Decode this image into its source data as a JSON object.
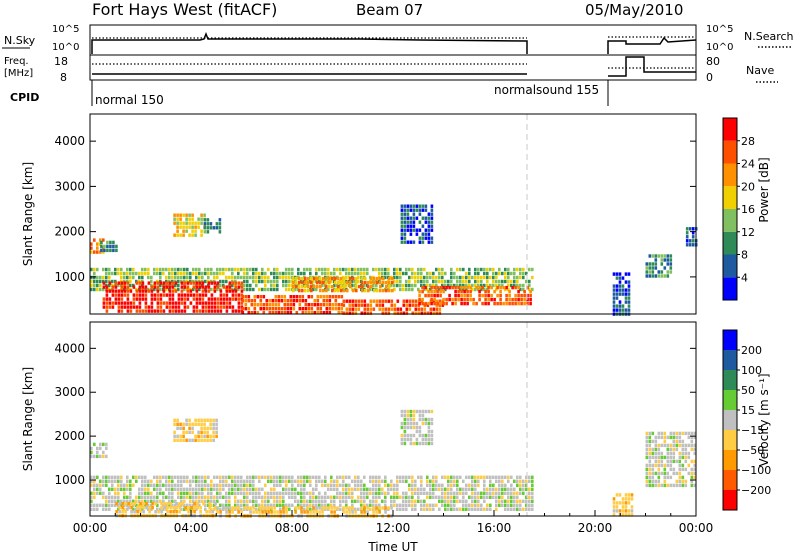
{
  "header": {
    "title": "Fort Hays West (fitACF)",
    "beam": "Beam 07",
    "date": "05/May/2010"
  },
  "status_panel": {
    "nsky_label": "N.Sky",
    "nsky_ticks": [
      "10^5",
      "10^0"
    ],
    "nsearch_label": "N.Search",
    "nsearch_ticks": [
      "10^5",
      "10^0"
    ],
    "freq_label": "Freq.",
    "freq_unit": "[MHz]",
    "freq_ticks": [
      "18",
      "8"
    ],
    "nave_label": "Nave",
    "nave_ticks": [
      "80",
      "0"
    ],
    "cpid_label": "CPID",
    "modes": [
      {
        "name": "normal 150",
        "start_hour": 0.0,
        "end_hour": 17.5
      },
      {
        "name": "normalsound 155",
        "start_hour": 17.5,
        "end_hour": 20.67
      }
    ],
    "data_gap": {
      "start_hour": 17.5,
      "end_hour": 20.67
    }
  },
  "colors": {
    "power_scale": [
      "#0000ff",
      "#1e5aa0",
      "#2e8b57",
      "#80c060",
      "#f0d000",
      "#ff9000",
      "#ff5000",
      "#ff0000"
    ],
    "velocity_scale": [
      "#ff0000",
      "#ff5a00",
      "#ff9a00",
      "#ffcc44",
      "#c0c0c0",
      "#66cc33",
      "#2e8b57",
      "#1e5aa0",
      "#0000ff"
    ]
  },
  "chart_data": [
    {
      "type": "heatmap",
      "name": "power",
      "xlabel": "Time UT",
      "ylabel": "Slant Range [km]",
      "xlim": [
        0,
        24
      ],
      "ylim": [
        180,
        4600
      ],
      "yticks": [
        "1000",
        "2000",
        "3000",
        "4000"
      ],
      "xticks": [
        "00:00",
        "04:00",
        "08:00",
        "12:00",
        "16:00",
        "20:00",
        "00:00"
      ],
      "colorbar_label": "Power [dB]",
      "colorbar_ticks": [
        "4",
        "8",
        "12",
        "16",
        "20",
        "24",
        "28"
      ],
      "clim": [
        0,
        30
      ],
      "echo_regions": [
        {
          "t0": 0.0,
          "t1": 0.5,
          "r0": 1500,
          "r1": 1850,
          "value": 22
        },
        {
          "t0": 0.4,
          "t1": 1.0,
          "r0": 1600,
          "r1": 1800,
          "value": 8
        },
        {
          "t0": 0.0,
          "t1": 17.5,
          "r0": 700,
          "r1": 1200,
          "value": 14
        },
        {
          "t0": 0.5,
          "t1": 6.0,
          "r0": 200,
          "r1": 900,
          "value": 28
        },
        {
          "t0": 6.0,
          "t1": 10.0,
          "r0": 200,
          "r1": 600,
          "value": 26
        },
        {
          "t0": 10.0,
          "t1": 14.0,
          "r0": 200,
          "r1": 500,
          "value": 26
        },
        {
          "t0": 13.0,
          "t1": 17.5,
          "r0": 400,
          "r1": 800,
          "value": 24
        },
        {
          "t0": 8.0,
          "t1": 12.0,
          "r0": 700,
          "r1": 1000,
          "value": 20
        },
        {
          "t0": 3.3,
          "t1": 4.5,
          "r0": 1900,
          "r1": 2400,
          "value": 18
        },
        {
          "t0": 4.5,
          "t1": 5.2,
          "r0": 2000,
          "r1": 2300,
          "value": 10
        },
        {
          "t0": 12.3,
          "t1": 13.5,
          "r0": 1800,
          "r1": 2600,
          "value": 6
        },
        {
          "t0": 20.7,
          "t1": 21.3,
          "r0": 200,
          "r1": 1100,
          "value": 6
        },
        {
          "t0": 22.0,
          "t1": 23.0,
          "r0": 1000,
          "r1": 1500,
          "value": 10
        },
        {
          "t0": 23.6,
          "t1": 24.0,
          "r0": 1700,
          "r1": 2100,
          "value": 4
        }
      ]
    },
    {
      "type": "heatmap",
      "name": "velocity",
      "xlabel": "Time UT",
      "ylabel": "Slant Range [km]",
      "xlim": [
        0,
        24
      ],
      "ylim": [
        180,
        4600
      ],
      "yticks": [
        "1000",
        "2000",
        "3000",
        "4000"
      ],
      "xticks": [
        "00:00",
        "04:00",
        "08:00",
        "12:00",
        "16:00",
        "20:00",
        "00:00"
      ],
      "colorbar_label": "Velocity [m s⁻¹]",
      "colorbar_ticks": [
        "−200",
        "−100",
        "−50",
        "−15",
        "15",
        "50",
        "100",
        "200"
      ],
      "clim": [
        -250,
        250
      ],
      "echo_regions": [
        {
          "t0": 0.0,
          "t1": 0.6,
          "r0": 1500,
          "r1": 1850,
          "value": 0
        },
        {
          "t0": 0.0,
          "t1": 17.5,
          "r0": 300,
          "r1": 1100,
          "value": 0
        },
        {
          "t0": 1.0,
          "t1": 5.0,
          "r0": 200,
          "r1": 500,
          "value": -60
        },
        {
          "t0": 5.0,
          "t1": 12.0,
          "r0": 200,
          "r1": 400,
          "value": -40
        },
        {
          "t0": 3.3,
          "t1": 5.0,
          "r0": 1900,
          "r1": 2400,
          "value": -60
        },
        {
          "t0": 12.3,
          "t1": 13.5,
          "r0": 1800,
          "r1": 2600,
          "value": 0
        },
        {
          "t0": 20.7,
          "t1": 21.5,
          "r0": 200,
          "r1": 700,
          "value": -60
        },
        {
          "t0": 22.0,
          "t1": 24.0,
          "r0": 900,
          "r1": 2100,
          "value": 0
        }
      ]
    }
  ]
}
